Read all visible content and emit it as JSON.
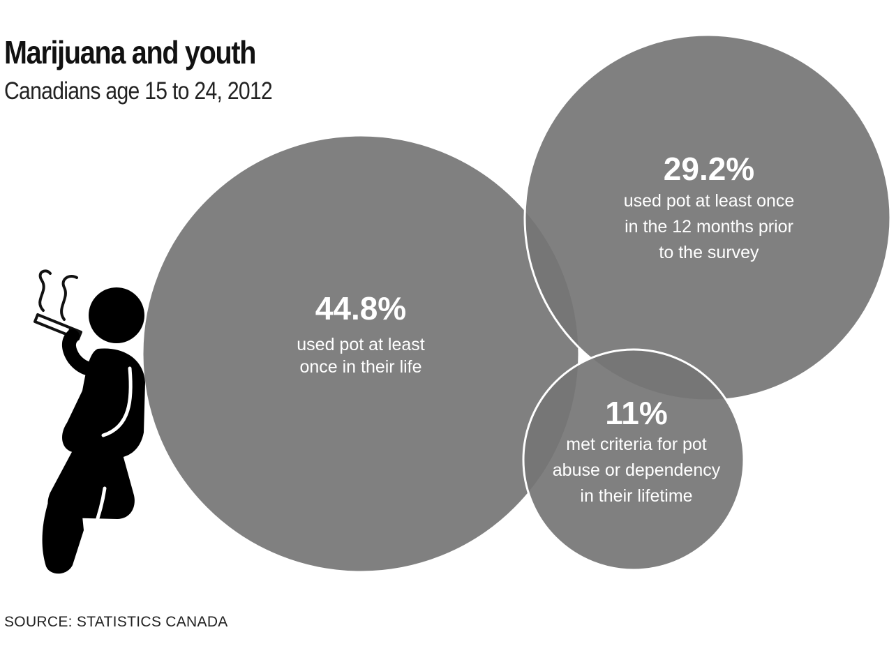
{
  "title": "Marijuana and youth",
  "subtitle": "Canadians age 15 to 24, 2012",
  "source": "SOURCE: STATISTICS CANADA",
  "colors": {
    "bubble": "#757575",
    "bubble_outline": "#ffffff",
    "figure": "#000000"
  },
  "icons": {
    "person": "smoking-person-icon"
  },
  "chart_data": {
    "type": "bubble",
    "title": "Marijuana and youth",
    "subtitle": "Canadians age 15 to 24, 2012",
    "unit": "%",
    "bubbles": [
      {
        "label": "44.8%",
        "value": 44.8,
        "lines": [
          "used pot at least",
          "once in their life"
        ]
      },
      {
        "label": "29.2%",
        "value": 29.2,
        "lines": [
          "used pot at least once",
          "in the 12 months prior",
          "to the survey"
        ]
      },
      {
        "label": "11%",
        "value": 11,
        "lines": [
          "met criteria for pot",
          "abuse or dependency",
          "in their lifetime"
        ]
      }
    ]
  }
}
